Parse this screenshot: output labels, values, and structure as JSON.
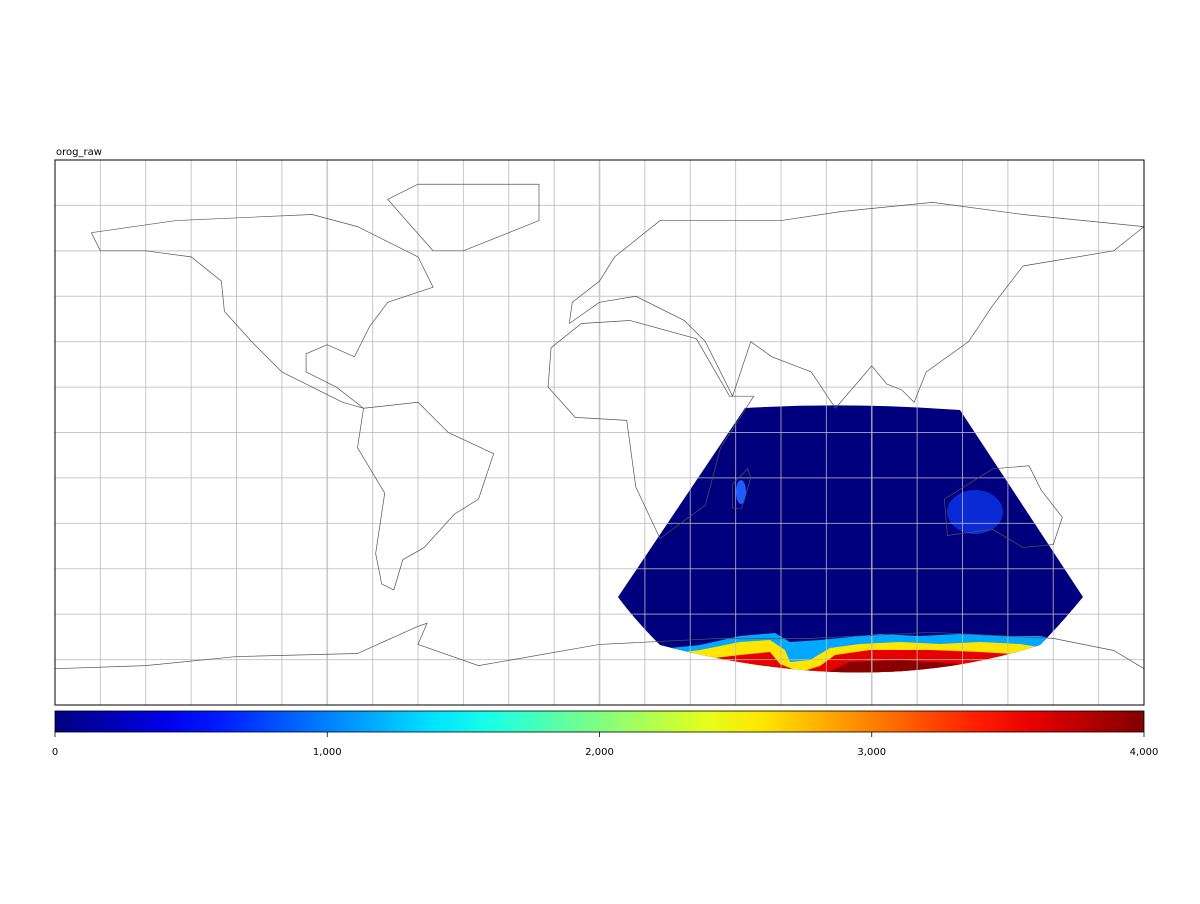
{
  "chart_data": {
    "type": "map",
    "title": "orog_raw",
    "colormap": "jet",
    "clim": [
      0,
      4000
    ],
    "cticks": [
      0,
      {
        "value": 1000,
        "label": "1,000"
      },
      {
        "value": 2000,
        "label": "2,000"
      },
      {
        "value": 3000,
        "label": "3,000"
      },
      {
        "value": 4000,
        "label": "4,000"
      }
    ],
    "grid": true
  }
}
